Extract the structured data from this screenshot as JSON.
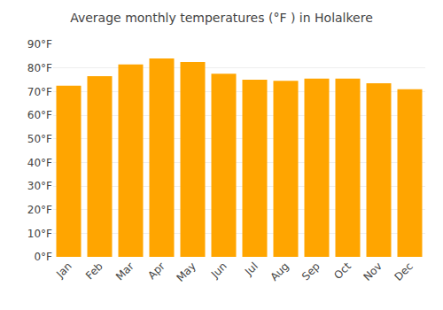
{
  "chart_data": {
    "type": "bar",
    "title": "Average monthly temperatures (°F ) in Holalkere",
    "categories": [
      "Jan",
      "Feb",
      "Mar",
      "Apr",
      "May",
      "Jun",
      "Jul",
      "Aug",
      "Sep",
      "Oct",
      "Nov",
      "Dec"
    ],
    "values": [
      72.5,
      76.5,
      81.5,
      84.0,
      82.5,
      77.5,
      75.0,
      74.5,
      75.5,
      75.5,
      73.5,
      71.0
    ],
    "color": "#FFA500",
    "ylim": [
      0,
      90
    ],
    "yticks": [
      {
        "value": 0,
        "label": "0°F"
      },
      {
        "value": 10,
        "label": "10°F"
      },
      {
        "value": 20,
        "label": "20°F"
      },
      {
        "value": 30,
        "label": "30°F"
      },
      {
        "value": 40,
        "label": "40°F"
      },
      {
        "value": 50,
        "label": "50°F"
      },
      {
        "value": 60,
        "label": "60°F"
      },
      {
        "value": 70,
        "label": "70°F"
      },
      {
        "value": 80,
        "label": "80°F"
      },
      {
        "value": 90,
        "label": "90°F"
      }
    ],
    "grid": true
  }
}
